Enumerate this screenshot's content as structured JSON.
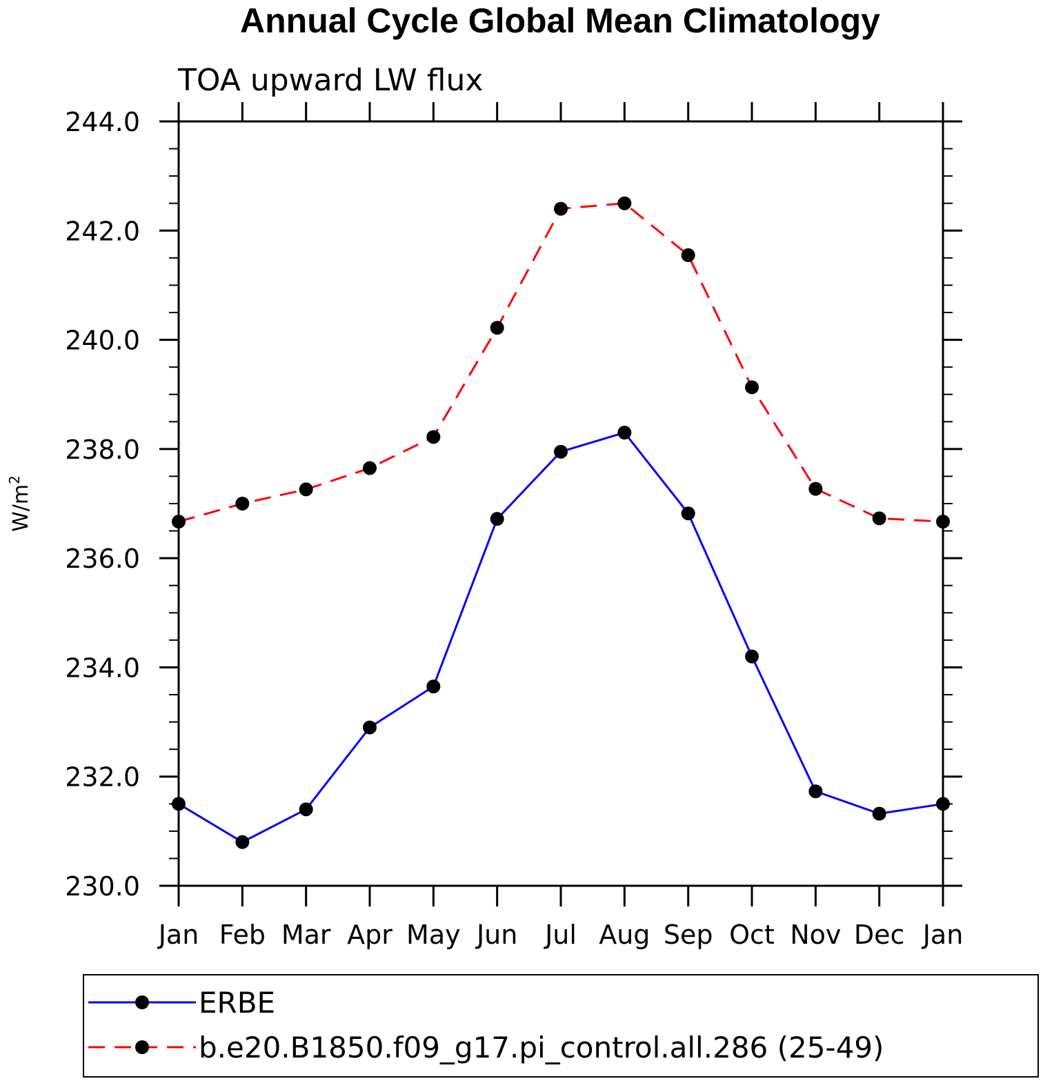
{
  "chart_data": {
    "type": "line",
    "title": "Annual Cycle Global Mean Climatology",
    "subtitle": "TOA upward LW flux",
    "ylabel": "W/m",
    "ylabel_superscript": "2",
    "xlabel": "",
    "categories": [
      "Jan",
      "Feb",
      "Mar",
      "Apr",
      "May",
      "Jun",
      "Jul",
      "Aug",
      "Sep",
      "Oct",
      "Nov",
      "Dec",
      "Jan"
    ],
    "ylim": [
      230.0,
      244.0
    ],
    "yticks": [
      "230.0",
      "232.0",
      "234.0",
      "236.0",
      "238.0",
      "240.0",
      "242.0",
      "244.0"
    ],
    "grid": false,
    "legend_position": "bottom",
    "series": [
      {
        "name": "ERBE",
        "color": "#0000ff",
        "line_style": "solid",
        "marker": "filled-circle",
        "values": [
          231.5,
          230.8,
          231.4,
          232.9,
          233.65,
          236.72,
          237.95,
          238.3,
          236.82,
          234.2,
          231.73,
          231.32,
          231.5
        ]
      },
      {
        "name": "b.e20.B1850.f09_g17.pi_control.all.286 (25-49)",
        "color": "#ff0000",
        "line_style": "dashed",
        "marker": "filled-circle",
        "values": [
          236.67,
          237.0,
          237.26,
          237.65,
          238.22,
          240.22,
          242.4,
          242.5,
          241.55,
          239.13,
          237.27,
          236.73,
          236.67
        ]
      }
    ]
  }
}
